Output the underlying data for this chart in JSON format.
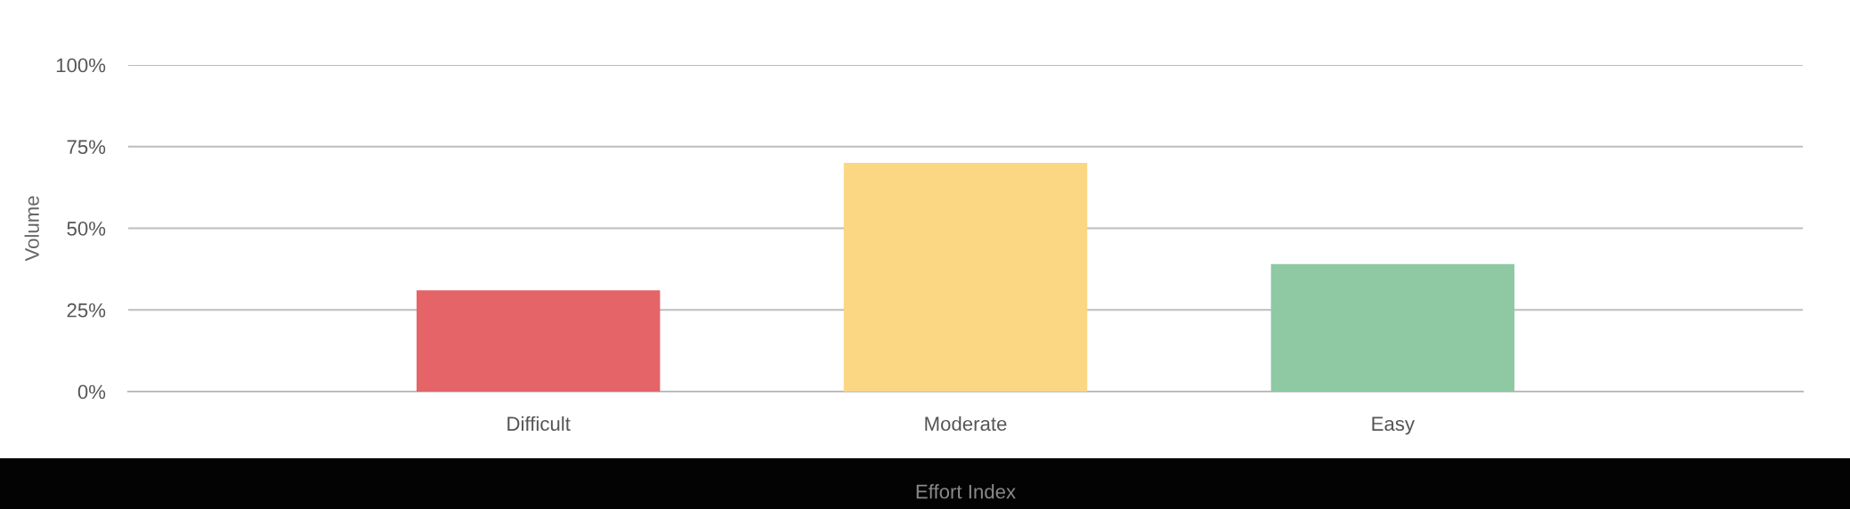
{
  "chart_data": {
    "type": "bar",
    "categories": [
      "Difficult",
      "Moderate",
      "Easy"
    ],
    "values": [
      31,
      70,
      39
    ],
    "colors": [
      "#e46467",
      "#fbd784",
      "#8ec9a3"
    ],
    "ylabel": "Volume",
    "xlabel": "Effort Index",
    "ylim": [
      0,
      100
    ],
    "yticks": [
      {
        "value": 0,
        "label": "0%"
      },
      {
        "value": 25,
        "label": "25%"
      },
      {
        "value": 50,
        "label": "50%"
      },
      {
        "value": 75,
        "label": "75%"
      },
      {
        "value": 100,
        "label": "100%"
      }
    ],
    "grid": "y",
    "legend": false
  }
}
